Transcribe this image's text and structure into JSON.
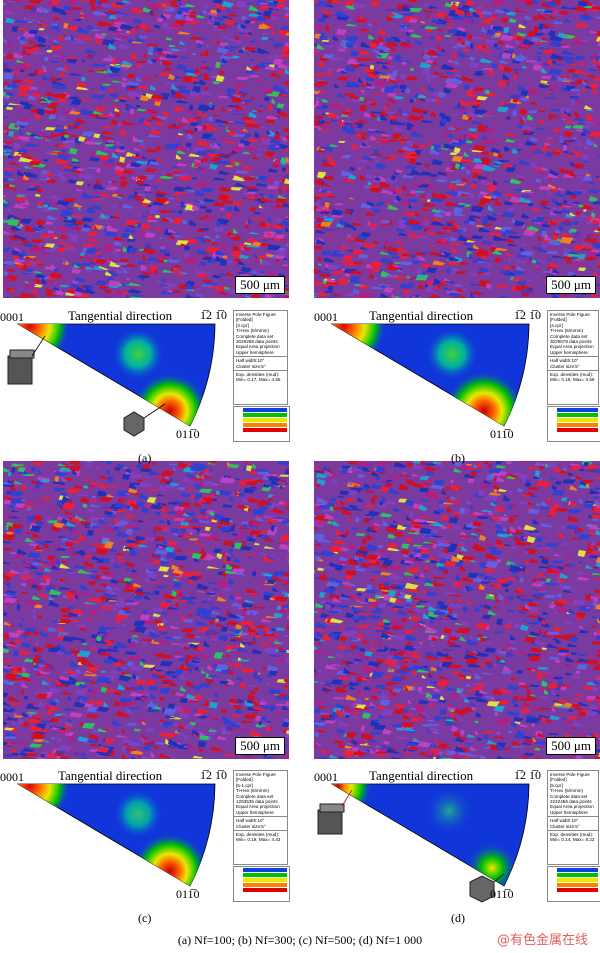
{
  "scale_bar": "500 μm",
  "ipf_title": "Tangential direction",
  "corner_0001": "0001",
  "corner_top": "1̅2 1̅0",
  "corner_bottom": "011̅0",
  "panels": [
    {
      "label": "(a)",
      "legend": [
        "Inverse Pole Figure",
        "[Folded]",
        "[3.cpr]",
        "Ti-Hex (6/mmm)",
        "Complete data set",
        "3029288 data points",
        "Equal Area projection",
        "Upper hemisphere",
        "Half width:10°",
        "Cluster size:5°",
        "Exp. densities (mud):",
        "Min= 0.17, Max= 4.55"
      ]
    },
    {
      "label": "(b)",
      "legend": [
        "Inverse Pole Figure",
        "[Folded]",
        "[4.cpr]",
        "Ti-Hex (6/mmm)",
        "Complete data set",
        "3029679 data points",
        "Equal Area projection",
        "Upper hemisphere",
        "Half width:10°",
        "Cluster size:5°",
        "Exp. densities (mud):",
        "Min= 0.16, Max= 4.59"
      ]
    },
    {
      "label": "(c)",
      "legend": [
        "Inverse Pole Figure",
        "[Folded]",
        "[5-1.cpr]",
        "Ti-Hex (6/mmm)",
        "Complete data set",
        "1293535 data points",
        "Equal Area projection",
        "Upper hemisphere",
        "Half width:10°",
        "Cluster size:5°",
        "Exp. densities (mud):",
        "Min= 0.19, Max= 4.43"
      ]
    },
    {
      "label": "(d)",
      "legend": [
        "Inverse Pole Figure",
        "[Folded]",
        "[5.cpr]",
        "Ti-Hex (6/mmm)",
        "Complete data set",
        "2242456 data points",
        "Equal Area projection",
        "Upper hemisphere",
        "Half width:10°",
        "Cluster size:5°",
        "Exp. densities (mud):",
        "Min= 0.14, Max= 8.22"
      ]
    }
  ],
  "caption": "(a) Nf=100; (b) Nf=300; (c) Nf=500; (d) Nf=1 000",
  "watermark": "@有色金属在线"
}
